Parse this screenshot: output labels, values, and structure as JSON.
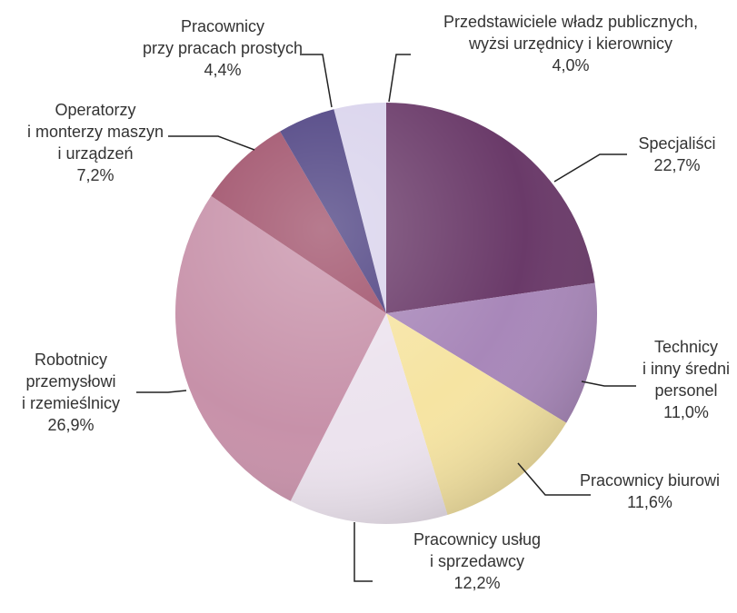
{
  "chart_data": {
    "type": "pie",
    "categories": [
      "Przedstawiciele władz publicznych,\nwyżsi urzędnicy i kierownicy",
      "Specjaliści",
      "Technicy\ni inny średni\npersonel",
      "Pracownicy biurowi",
      "Pracownicy usług\ni sprzedawcy",
      "Robotnicy\nprzemysłowi\ni rzemieślnicy",
      "Operatorzy\ni monterzy maszyn\ni urządzeń",
      "Pracownicy\nprzy pracach prostych"
    ],
    "values": [
      4.0,
      22.7,
      11.0,
      11.6,
      12.2,
      26.9,
      7.2,
      4.4
    ],
    "value_labels": [
      "4,0%",
      "22,7%",
      "11,0%",
      "11,6%",
      "12,2%",
      "26,9%",
      "7,2%",
      "4,4%"
    ],
    "colors": [
      "#d9d3ec",
      "#6a3a69",
      "#a887b9",
      "#f6e4a2",
      "#ece3ee",
      "#c791a9",
      "#9f4f69",
      "#4b3f80"
    ]
  }
}
